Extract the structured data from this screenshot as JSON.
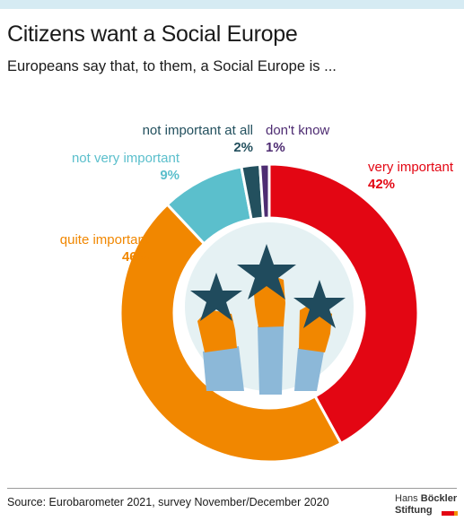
{
  "header": {
    "title": "Citizens want a Social Europe",
    "subtitle": "Europeans say that, to them, a Social Europe is ..."
  },
  "chart_data": {
    "type": "pie",
    "style": "donut",
    "start_angle_deg": 0,
    "direction": "clockwise",
    "slices": [
      {
        "label": "very important",
        "value": 42,
        "value_label": "42%",
        "color": "#e30613"
      },
      {
        "label": "quite important",
        "value": 46,
        "value_label": "46%",
        "color": "#f18700"
      },
      {
        "label": "not very important",
        "value": 9,
        "value_label": "9%",
        "color": "#5bbfcc"
      },
      {
        "label": "not important at all",
        "value": 2,
        "value_label": "2%",
        "color": "#23505e"
      },
      {
        "label": "don't know",
        "value": 1,
        "value_label": "1%",
        "color": "#4e2c72"
      }
    ]
  },
  "illustration": {
    "icon": "hands-holding-stars-icon",
    "colors": {
      "circle": "#e5f1f3",
      "star": "#204b5d",
      "hand": "#f18700",
      "sleeve": "#8cb8d8"
    }
  },
  "footer": {
    "source": "Source: Eurobarometer 2021, survey November/December 2020",
    "logo_line1_a": "Hans",
    "logo_line1_b": "Böckler",
    "logo_line2": "Stiftung"
  }
}
